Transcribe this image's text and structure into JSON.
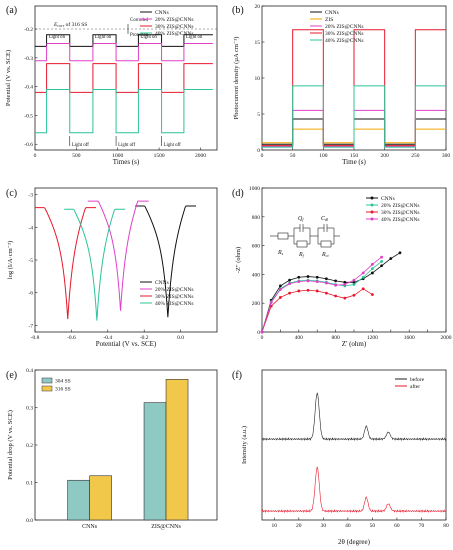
{
  "panels": [
    {
      "id": "a",
      "label": "(a)",
      "type": "line",
      "xlabel": "Times (s)",
      "ylabel": "Potential (V vs. SCE)",
      "xlim": [
        0,
        2200
      ],
      "ylim": [
        -0.62,
        -0.12
      ],
      "xticks": [
        0,
        500,
        1000,
        1500,
        2000
      ],
      "yticks": [
        -0.6,
        -0.5,
        -0.4,
        -0.3,
        -0.2
      ],
      "ytick_labels": [
        "-0.6",
        "-0.5",
        "-0.4",
        "-0.3",
        "-0.2"
      ],
      "legend": [
        "CNNs",
        "20% ZIS@CNNs",
        "30% ZIS@CNNs",
        "40% ZIS@CNNs"
      ],
      "annotations": {
        "ecorr_label": "E",
        "ecorr_sub": "corr",
        "ecorr_rest": " of 316 SS",
        "ecorr_value": -0.18,
        "corroded": "Corroded",
        "protected": "Protected",
        "light_on": "Light on",
        "light_off": "Light off"
      }
    },
    {
      "id": "b",
      "label": "(b)",
      "type": "line",
      "xlabel": "Time (s)",
      "ylabel": "Photocurrent density (µA cm⁻²)",
      "xlim": [
        0,
        300
      ],
      "ylim": [
        0,
        20
      ],
      "xticks": [
        0,
        50,
        100,
        150,
        200,
        250,
        300
      ],
      "yticks": [
        0,
        5,
        10,
        15,
        20
      ],
      "legend": [
        "CNNs",
        "ZIS",
        "20% ZIS@CNNs",
        "30% ZIS@CNNs",
        "40% ZIS@CNNs"
      ]
    },
    {
      "id": "c",
      "label": "(c)",
      "type": "line",
      "xlabel": "Potential (V vs. SCE)",
      "ylabel": "log (I/A·cm⁻²)",
      "xlim": [
        -0.8,
        0.2
      ],
      "ylim": [
        -7.2,
        -2.8
      ],
      "xticks": [
        -0.8,
        -0.6,
        -0.4,
        -0.2,
        0.0
      ],
      "xtick_labels": [
        "-0.8",
        "-0.6",
        "-0.4",
        "-0.2",
        "0.0"
      ],
      "yticks": [
        -7,
        -6,
        -5,
        -4,
        -3
      ],
      "ytick_labels": [
        "-7",
        "-6",
        "-5",
        "-4",
        "-3"
      ],
      "legend": [
        "CNNs",
        "20% ZIS@CNNs",
        "30% ZIS@CNNs",
        "40% ZIS@CNNs"
      ]
    },
    {
      "id": "d",
      "label": "(d)",
      "type": "scatter",
      "xlabel": "Z' (ohm)",
      "ylabel": "-Z\" (ohm)",
      "xlim": [
        0,
        2000
      ],
      "ylim": [
        0,
        1000
      ],
      "xticks": [
        0,
        200,
        400,
        600,
        800,
        1000,
        1200,
        1400,
        1600,
        1800,
        2000
      ],
      "yticks": [
        0,
        200,
        400,
        600,
        800,
        1000
      ],
      "legend": [
        "CNNs",
        "20% ZIS@CNNs",
        "30% ZIS@CNNs",
        "40% ZIS@CNNs"
      ],
      "circuit": {
        "rs": "R",
        "rs_sub": "s",
        "qf": "Q",
        "qf_sub": "f",
        "rf": "R",
        "rf_sub": "f",
        "cdl": "C",
        "cdl_sub": "dl",
        "rct": "R",
        "rct_sub": "ct"
      }
    },
    {
      "id": "e",
      "label": "(e)",
      "type": "bar",
      "ylabel": "Potential drop (V vs. SCE)",
      "ylim": [
        0,
        0.4
      ],
      "yticks": [
        0,
        0.1,
        0.2,
        0.3,
        0.4
      ],
      "ytick_labels": [
        "0.0",
        "0.1",
        "0.2",
        "0.3",
        "0.4"
      ],
      "categories": [
        "CNNs",
        "ZIS@CNNs"
      ],
      "series": [
        {
          "name": "304 SS",
          "values": [
            0.106,
            0.313
          ]
        },
        {
          "name": "316 SS",
          "values": [
            0.118,
            0.375
          ]
        }
      ]
    },
    {
      "id": "f",
      "label": "(f)",
      "type": "line",
      "xlabel": "2θ (degree)",
      "ylabel": "Intensity (a.u.)",
      "xlim": [
        5,
        80
      ],
      "xticks": [
        10,
        20,
        30,
        40,
        50,
        60,
        70,
        80
      ],
      "legend": [
        "before",
        "after"
      ]
    }
  ],
  "chart_data": [
    {
      "type": "line",
      "title": "",
      "xlabel": "Times (s)",
      "ylabel": "Potential (V vs. SCE)",
      "xlim": [
        0,
        2200
      ],
      "ylim": [
        -0.62,
        -0.12
      ],
      "light_on_times": [
        140,
        700,
        1250,
        1800
      ],
      "light_off_times": [
        420,
        980,
        1530
      ],
      "series": [
        {
          "name": "CNNs",
          "dark": -0.26,
          "light": -0.22
        },
        {
          "name": "20% ZIS@CNNs",
          "dark": -0.31,
          "light": -0.25
        },
        {
          "name": "30% ZIS@CNNs",
          "dark": -0.42,
          "light": -0.32
        },
        {
          "name": "40% ZIS@CNNs",
          "dark": -0.56,
          "light": -0.41
        }
      ]
    },
    {
      "type": "line",
      "xlabel": "Time (s)",
      "ylabel": "Photocurrent density (µA cm⁻²)",
      "xlim": [
        0,
        300
      ],
      "ylim": [
        0,
        20
      ],
      "light_on_times": [
        50,
        150,
        250
      ],
      "light_off_times": [
        100,
        200
      ],
      "series": [
        {
          "name": "CNNs",
          "dark": 0.8,
          "light": 4.3
        },
        {
          "name": "ZIS",
          "dark": 1.0,
          "light": 2.9
        },
        {
          "name": "20% ZIS@CNNs",
          "dark": 0.5,
          "light": 5.5
        },
        {
          "name": "30% ZIS@CNNs",
          "dark": 0.6,
          "light": 16.7
        },
        {
          "name": "40% ZIS@CNNs",
          "dark": 0.4,
          "light": 8.9
        }
      ]
    },
    {
      "type": "line",
      "xlabel": "Potential (V vs. SCE)",
      "ylabel": "log (I/A·cm⁻²)",
      "xlim": [
        -0.8,
        0.2
      ],
      "ylim": [
        -7.2,
        -2.8
      ],
      "series": [
        {
          "name": "CNNs",
          "ecorr": -0.07,
          "icorr": -6.75
        },
        {
          "name": "20% ZIS@CNNs",
          "ecorr": -0.33,
          "icorr": -6.55
        },
        {
          "name": "30% ZIS@CNNs",
          "ecorr": -0.62,
          "icorr": -6.8
        },
        {
          "name": "40% ZIS@CNNs",
          "ecorr": -0.46,
          "icorr": -6.85
        }
      ]
    },
    {
      "type": "scatter",
      "xlabel": "Z' (ohm)",
      "ylabel": "-Z\" (ohm)",
      "xlim": [
        0,
        2000
      ],
      "ylim": [
        0,
        1000
      ],
      "series": [
        {
          "name": "CNNs",
          "x": [
            0,
            100,
            200,
            300,
            400,
            500,
            600,
            700,
            800,
            900,
            1000,
            1100,
            1200,
            1300,
            1400,
            1500
          ],
          "y": [
            0,
            220,
            320,
            360,
            380,
            385,
            380,
            370,
            355,
            345,
            345,
            370,
            410,
            460,
            510,
            550
          ]
        },
        {
          "name": "20% ZIS@CNNs",
          "x": [
            0,
            100,
            200,
            300,
            400,
            500,
            600,
            700,
            800,
            900,
            1000,
            1100,
            1200,
            1300
          ],
          "y": [
            0,
            210,
            300,
            340,
            355,
            360,
            355,
            345,
            330,
            320,
            330,
            380,
            440,
            490
          ]
        },
        {
          "name": "30% ZIS@CNNs",
          "x": [
            0,
            100,
            200,
            300,
            400,
            500,
            600,
            700,
            800,
            900,
            1000,
            1100,
            1200
          ],
          "y": [
            0,
            180,
            240,
            270,
            285,
            290,
            285,
            270,
            250,
            235,
            255,
            300,
            260
          ]
        },
        {
          "name": "40% ZIS@CNNs",
          "x": [
            0,
            100,
            200,
            300,
            400,
            500,
            600,
            700,
            800,
            900,
            1000,
            1100,
            1200,
            1300
          ],
          "y": [
            0,
            205,
            295,
            335,
            350,
            355,
            350,
            340,
            325,
            330,
            360,
            410,
            470,
            520
          ]
        }
      ]
    },
    {
      "type": "bar",
      "categories": [
        "CNNs",
        "ZIS@CNNs"
      ],
      "ylabel": "Potential drop (V vs. SCE)",
      "ylim": [
        0,
        0.4
      ],
      "series": [
        {
          "name": "304 SS",
          "values": [
            0.106,
            0.313
          ]
        },
        {
          "name": "316 SS",
          "values": [
            0.118,
            0.375
          ]
        }
      ]
    },
    {
      "type": "line",
      "xlabel": "2θ (degree)",
      "ylabel": "Intensity (a.u.)",
      "xlim": [
        5,
        80
      ],
      "peaks": [
        27.5,
        47.5,
        56.5
      ],
      "series": [
        {
          "name": "before",
          "peak_heights": [
            1.0,
            0.28,
            0.15
          ]
        },
        {
          "name": "after",
          "peak_heights": [
            0.95,
            0.3,
            0.16
          ]
        }
      ]
    }
  ],
  "colors": {
    "cnns": "#111111",
    "zis": "#f2a900",
    "zis20": "#e040c8",
    "zis30": "#e8192c",
    "zis40": "#2cc49a",
    "bar304": "#8fc9c4",
    "bar316": "#f2c84b",
    "xrd_before": "#222222",
    "xrd_after": "#e8192c"
  }
}
